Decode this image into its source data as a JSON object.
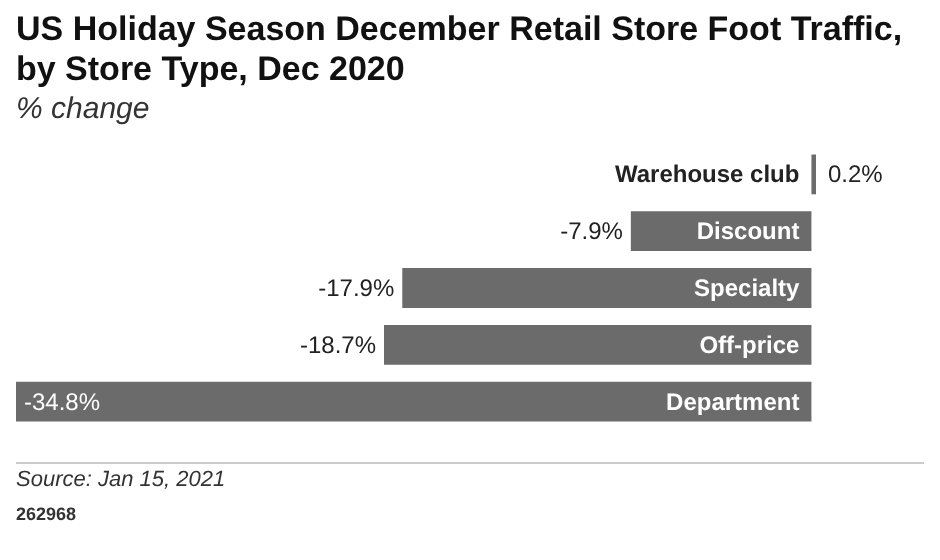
{
  "chart_data": {
    "type": "bar",
    "orientation": "horizontal",
    "title": "US Holiday Season December Retail Store Foot Traffic, by Store Type, Dec 2020",
    "subtitle": "% change",
    "categories": [
      "Warehouse club",
      "Discount",
      "Specialty",
      "Off-price",
      "Department"
    ],
    "values": [
      0.2,
      -7.9,
      -17.9,
      -18.7,
      -34.8
    ],
    "value_labels": [
      "0.2%",
      "-7.9%",
      "-17.9%",
      "-18.7%",
      "-34.8%"
    ],
    "color": "#6b6b6b",
    "annotations": [
      "Source: Jan 15, 2021",
      "262968"
    ]
  }
}
